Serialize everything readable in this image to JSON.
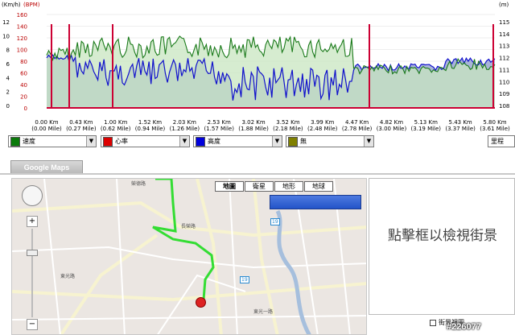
{
  "chart": {
    "units": {
      "speed": "(Km/h)",
      "hr": "(BPM)",
      "alt": "(m)"
    },
    "speed_ticks": [
      "12",
      "10",
      "8",
      "6",
      "4",
      "2",
      "0"
    ],
    "hr_ticks": [
      "160",
      "140",
      "120",
      "100",
      "80",
      "60",
      "40",
      "20",
      "0"
    ],
    "alt_ticks": [
      "115",
      "114",
      "113",
      "112",
      "111",
      "110",
      "109",
      "108"
    ],
    "x_labels": [
      {
        "km": "0.00 Km",
        "mile": "(0.00 Mile)"
      },
      {
        "km": "0.43 Km",
        "mile": "(0.27 Mile)"
      },
      {
        "km": "1.00 Km",
        "mile": "(0.62 Mile)"
      },
      {
        "km": "1.52 Km",
        "mile": "(0.94 Mile)"
      },
      {
        "km": "2.03 Km",
        "mile": "(1.26 Mile)"
      },
      {
        "km": "2.53 Km",
        "mile": "(1.57 Mile)"
      },
      {
        "km": "3.02 Km",
        "mile": "(1.88 Mile)"
      },
      {
        "km": "3.52 Km",
        "mile": "(2.18 Mile)"
      },
      {
        "km": "3.99 Km",
        "mile": "(2.48 Mile)"
      },
      {
        "km": "4.47 Km",
        "mile": "(2.78 Mile)"
      },
      {
        "km": "4.82 Km",
        "mile": "(3.00 Mile)"
      },
      {
        "km": "5.13 Km",
        "mile": "(3.19 Mile)"
      },
      {
        "km": "5.43 Km",
        "mile": "(3.37 Mile)"
      },
      {
        "km": "5.80 Km",
        "mile": "(3.61 Mile)"
      }
    ],
    "colors": {
      "speed": "#1a7a1a",
      "speed_fill": "#c8e6c0",
      "hr": "#cc0033",
      "alt": "#1010cc",
      "alt_fill": "#a8b4d8"
    }
  },
  "selectors": [
    {
      "label": "速度",
      "color": "#0a7a0a"
    },
    {
      "label": "心率",
      "color": "#dd0000"
    },
    {
      "label": "高度",
      "color": "#0000dd"
    },
    {
      "label": "無",
      "color": "#808000"
    }
  ],
  "distance_select": "里程",
  "map": {
    "tab_label": "Google Maps",
    "types": [
      "地圖",
      "衛星",
      "地形",
      "地球"
    ],
    "route_color": "#33dd33",
    "road_labels": [
      "榮德路",
      "19",
      "19",
      "東光路",
      "長榮路",
      "東光一路"
    ]
  },
  "streetview": {
    "prompt": "點擊框以檢視街景",
    "checkbox_label": "街景視圖"
  },
  "watermark": "#226077"
}
